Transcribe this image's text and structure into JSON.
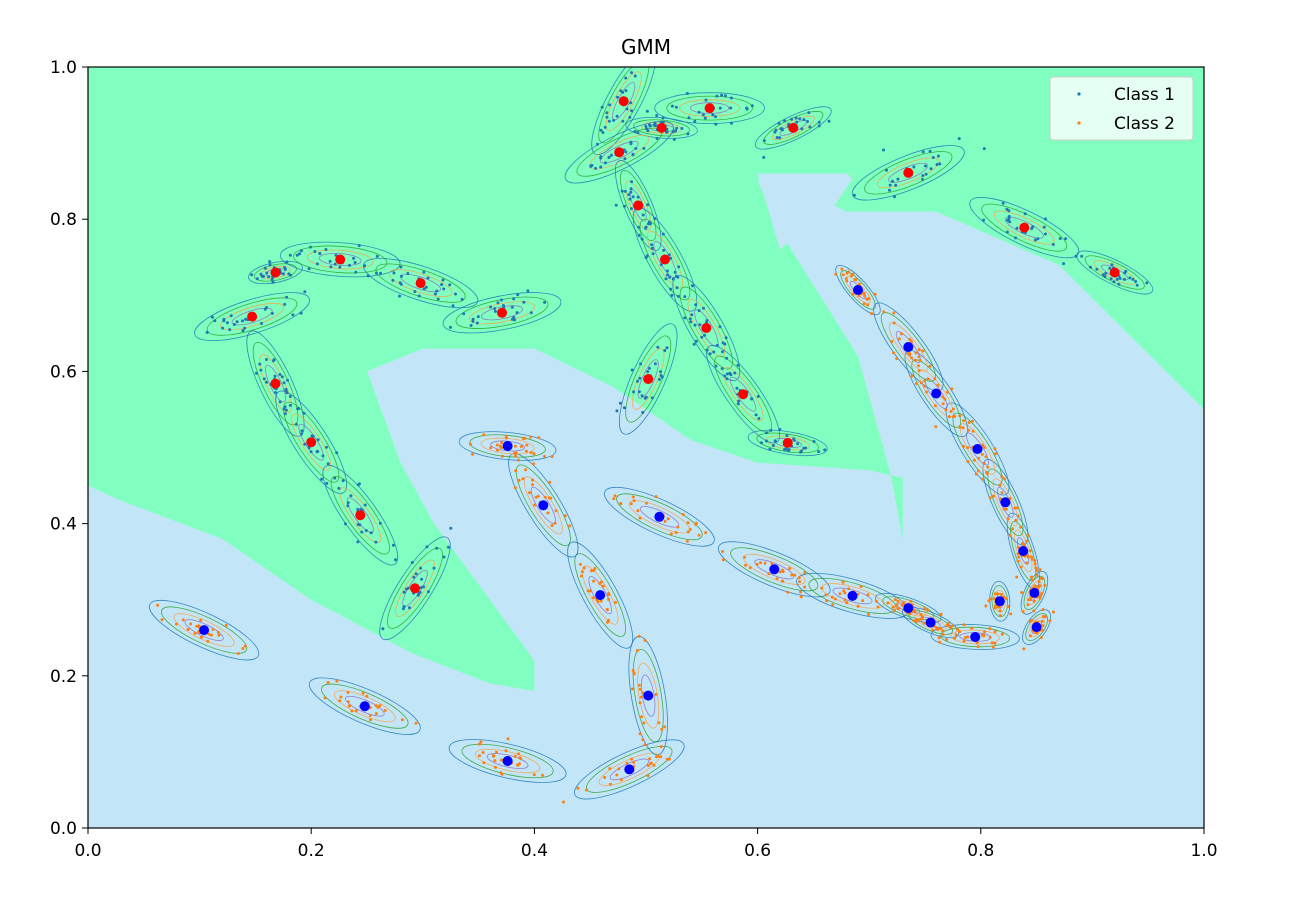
{
  "chart_data": {
    "type": "scatter",
    "title": "GMM",
    "xlabel": "",
    "ylabel": "",
    "xlim": [
      0.0,
      1.0
    ],
    "ylim": [
      0.0,
      1.0
    ],
    "x_ticks": [
      "0.0",
      "0.2",
      "0.4",
      "0.6",
      "0.8",
      "1.0"
    ],
    "y_ticks": [
      "0.0",
      "0.2",
      "0.4",
      "0.6",
      "0.8",
      "1.0"
    ],
    "grid": false,
    "legend_position": "top-right",
    "region_colors": {
      "class1": "#80ffc0",
      "class2": "#c2e5f8"
    },
    "series": [
      {
        "name": "Class 1",
        "point_color": "#1f77b4",
        "center_color": "#ff0000",
        "component_centers": [
          [
            0.168,
            0.73
          ],
          [
            0.226,
            0.747
          ],
          [
            0.298,
            0.716
          ],
          [
            0.371,
            0.677
          ],
          [
            0.147,
            0.672
          ],
          [
            0.168,
            0.584
          ],
          [
            0.2,
            0.507
          ],
          [
            0.244,
            0.411
          ],
          [
            0.293,
            0.315
          ],
          [
            0.48,
            0.955
          ],
          [
            0.514,
            0.92
          ],
          [
            0.557,
            0.946
          ],
          [
            0.632,
            0.92
          ],
          [
            0.476,
            0.888
          ],
          [
            0.493,
            0.818
          ],
          [
            0.517,
            0.747
          ],
          [
            0.554,
            0.657
          ],
          [
            0.587,
            0.57
          ],
          [
            0.627,
            0.506
          ],
          [
            0.502,
            0.59
          ],
          [
            0.735,
            0.861
          ],
          [
            0.839,
            0.789
          ],
          [
            0.92,
            0.73
          ]
        ]
      },
      {
        "name": "Class 2",
        "point_color": "#ff7f0e",
        "center_color": "#0000ff",
        "component_centers": [
          [
            0.104,
            0.26
          ],
          [
            0.248,
            0.16
          ],
          [
            0.376,
            0.088
          ],
          [
            0.485,
            0.077
          ],
          [
            0.502,
            0.174
          ],
          [
            0.459,
            0.306
          ],
          [
            0.408,
            0.424
          ],
          [
            0.376,
            0.502
          ],
          [
            0.512,
            0.409
          ],
          [
            0.615,
            0.34
          ],
          [
            0.685,
            0.305
          ],
          [
            0.735,
            0.289
          ],
          [
            0.755,
            0.27
          ],
          [
            0.795,
            0.251
          ],
          [
            0.85,
            0.264
          ],
          [
            0.817,
            0.298
          ],
          [
            0.848,
            0.309
          ],
          [
            0.838,
            0.364
          ],
          [
            0.822,
            0.428
          ],
          [
            0.797,
            0.498
          ],
          [
            0.76,
            0.571
          ],
          [
            0.735,
            0.632
          ],
          [
            0.69,
            0.707
          ]
        ]
      }
    ]
  }
}
